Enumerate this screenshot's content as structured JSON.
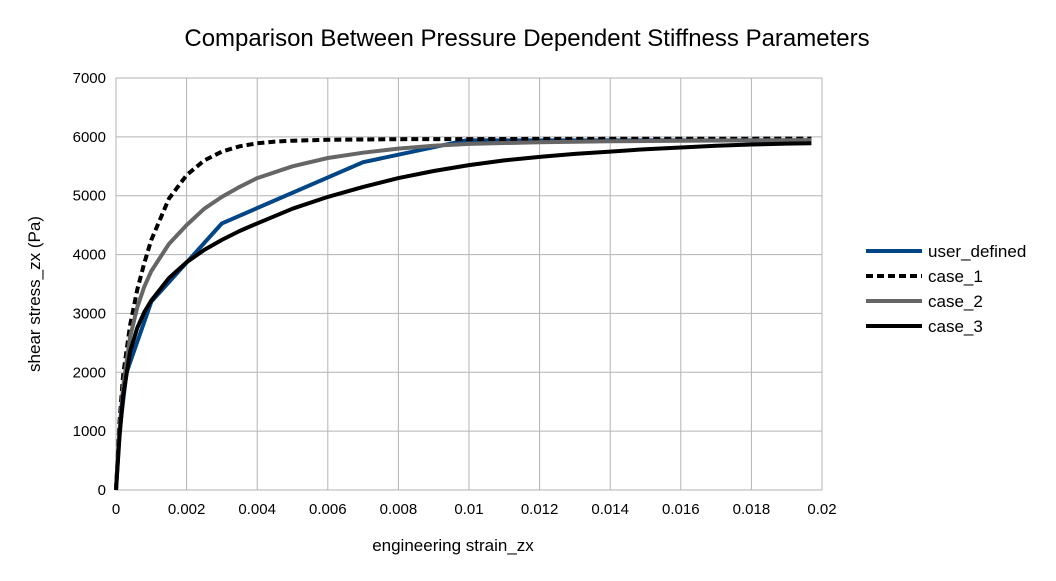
{
  "chart_data": {
    "type": "line",
    "title": "Comparison Between Pressure Dependent Stiffness Parameters",
    "xlabel": "engineering strain_zx",
    "ylabel": "shear stress_zx (Pa)",
    "xlim": [
      0,
      0.02
    ],
    "ylim": [
      0,
      7000
    ],
    "x_ticks": [
      "0",
      "0.002",
      "0.004",
      "0.006",
      "0.008",
      "0.01",
      "0.012",
      "0.014",
      "0.016",
      "0.018",
      "0.02"
    ],
    "y_ticks": [
      "0",
      "1000",
      "2000",
      "3000",
      "4000",
      "5000",
      "6000",
      "7000"
    ],
    "grid": true,
    "legend_position": "right",
    "series": [
      {
        "name": "user_defined",
        "color": "#004586",
        "dash": "solid",
        "x": [
          0,
          0.0001,
          0.0003,
          0.001,
          0.003,
          0.007,
          0.0099,
          0.0197
        ],
        "y": [
          0,
          1000,
          2000,
          3200,
          4530,
          5570,
          5940,
          5940
        ]
      },
      {
        "name": "case_1",
        "color": "#000000",
        "dash": "dashed",
        "x": [
          0,
          0.0001,
          0.0002,
          0.0004,
          0.0006,
          0.0008,
          0.001,
          0.0015,
          0.002,
          0.0025,
          0.003,
          0.0035,
          0.004,
          0.0045,
          0.005,
          0.006,
          0.007,
          0.008,
          0.01,
          0.012,
          0.014,
          0.016,
          0.018,
          0.0197
        ],
        "y": [
          0,
          1150,
          1950,
          2800,
          3400,
          3850,
          4250,
          4950,
          5350,
          5600,
          5750,
          5840,
          5890,
          5920,
          5935,
          5950,
          5955,
          5960,
          5962,
          5965,
          5967,
          5968,
          5969,
          5970
        ]
      },
      {
        "name": "case_2",
        "color": "#666666",
        "dash": "solid",
        "x": [
          0,
          0.0001,
          0.0002,
          0.0004,
          0.0006,
          0.0008,
          0.001,
          0.0015,
          0.002,
          0.0025,
          0.003,
          0.0035,
          0.004,
          0.005,
          0.006,
          0.007,
          0.008,
          0.009,
          0.01,
          0.012,
          0.014,
          0.016,
          0.018,
          0.0197
        ],
        "y": [
          0,
          1000,
          1750,
          2600,
          3100,
          3450,
          3720,
          4180,
          4500,
          4780,
          4980,
          5150,
          5300,
          5500,
          5640,
          5730,
          5800,
          5850,
          5880,
          5910,
          5925,
          5935,
          5940,
          5945
        ]
      },
      {
        "name": "case_3",
        "color": "#000000",
        "dash": "solid",
        "x": [
          0,
          0.0001,
          0.0002,
          0.0004,
          0.0006,
          0.0008,
          0.001,
          0.0015,
          0.002,
          0.0025,
          0.003,
          0.0035,
          0.004,
          0.005,
          0.006,
          0.007,
          0.008,
          0.009,
          0.01,
          0.011,
          0.012,
          0.013,
          0.014,
          0.015,
          0.016,
          0.017,
          0.018,
          0.019,
          0.0197
        ],
        "y": [
          0,
          900,
          1600,
          2350,
          2750,
          3020,
          3220,
          3600,
          3870,
          4080,
          4250,
          4400,
          4530,
          4780,
          4980,
          5150,
          5300,
          5420,
          5520,
          5600,
          5660,
          5710,
          5750,
          5790,
          5820,
          5850,
          5870,
          5885,
          5890
        ]
      }
    ]
  }
}
